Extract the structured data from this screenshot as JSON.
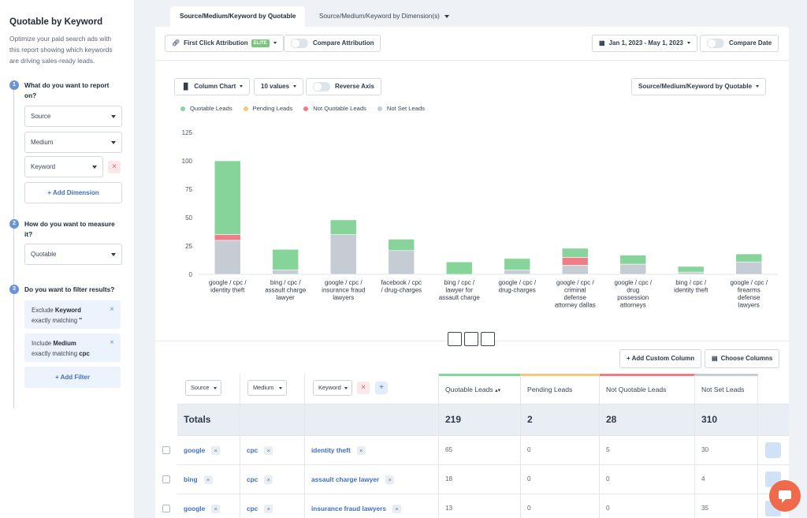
{
  "sidebar": {
    "title": "Quotable by Keyword",
    "description_lines": [
      "Optimize your paid search ads with",
      "this report showing which keywords",
      "are driving sales-ready leads."
    ],
    "steps": [
      {
        "num": "1",
        "question_lines": [
          "What do you want to report",
          "on?"
        ]
      },
      {
        "num": "2",
        "question_lines": [
          "How do you want to measure",
          "it?"
        ]
      },
      {
        "num": "3",
        "question_lines": [
          "Do you want to filter results?"
        ]
      }
    ],
    "dimensions": [
      "Source",
      "Medium",
      "Keyword"
    ],
    "add_dimension": "+ Add Dimension",
    "measure": "Quotable",
    "filters": [
      {
        "type": "Exclude",
        "field": "Keyword",
        "rule": "exactly matching",
        "value": "''"
      },
      {
        "type": "Include",
        "field": "Medium",
        "rule": "exactly matching",
        "value": "cpc"
      }
    ],
    "add_filter": "+ Add Filter"
  },
  "tabs": [
    "Source/Medium/Keyword by Quotable",
    "Source/Medium/Keyword by Dimension(s)"
  ],
  "toolbar": {
    "attribution": "First Click Attribution",
    "elite_badge": "ELITE",
    "compare_attribution": "Compare Attribution",
    "date_range": "Jan 1, 2023 - May 1, 2023",
    "compare_date": "Compare Date"
  },
  "chart_controls": {
    "chart_type": "Column Chart",
    "values_count": "10 values",
    "reverse_axis": "Reverse Axis",
    "group_by": "Source/Medium/Keyword by Quotable"
  },
  "colors": {
    "quotable": "#86d49a",
    "pending": "#f4c77b",
    "not_quotable": "#ef7d88",
    "not_set": "#c5ccd4",
    "accent": "#3f6fc4"
  },
  "chart_data": {
    "type": "bar",
    "stacked": true,
    "title": "",
    "xlabel": "",
    "ylabel": "",
    "ylim": [
      0,
      125
    ],
    "y_ticks": [
      0,
      25,
      50,
      75,
      100,
      125
    ],
    "categories": [
      [
        "google / cpc /",
        "identity theft"
      ],
      [
        "bing / cpc /",
        "assault charge",
        "lawyer"
      ],
      [
        "google / cpc /",
        "insurance fraud",
        "lawyers"
      ],
      [
        "facebook / cpc",
        "/ drug-charges"
      ],
      [
        "bing / cpc /",
        "lawyer for",
        "assault charge"
      ],
      [
        "google / cpc /",
        "drug-charges"
      ],
      [
        "google / cpc /",
        "criminal",
        "defense",
        "attorney dallas"
      ],
      [
        "google / cpc /",
        "drug",
        "possession",
        "attorneys"
      ],
      [
        "bing / cpc /",
        "identity theft"
      ],
      [
        "google / cpc /",
        "firearms",
        "defense",
        "lawyers"
      ]
    ],
    "series": [
      {
        "name": "Not Set Leads",
        "values": [
          30,
          4,
          35,
          21,
          0,
          4,
          8,
          9,
          2,
          11
        ]
      },
      {
        "name": "Not Quotable Leads",
        "values": [
          5,
          0,
          0,
          0,
          0,
          0,
          7,
          0,
          0,
          0
        ]
      },
      {
        "name": "Pending Leads",
        "values": [
          0,
          0,
          0,
          0,
          0,
          0,
          0,
          0,
          0,
          0
        ]
      },
      {
        "name": "Quotable Leads",
        "values": [
          65,
          18,
          13,
          10,
          11,
          10,
          8,
          8,
          5,
          7
        ]
      }
    ],
    "legend": [
      "Quotable Leads",
      "Pending Leads",
      "Not Quotable Leads",
      "Not Set Leads"
    ],
    "legend_position": "top-left"
  },
  "table": {
    "add_custom_column": "+ Add Custom Column",
    "choose_columns": "Choose Columns",
    "filters": [
      "Source",
      "Medium",
      "Keyword"
    ],
    "headers": [
      "Quotable Leads",
      "Pending Leads",
      "Not Quotable Leads",
      "Not Set Leads"
    ],
    "totals_label": "Totals",
    "totals": [
      "219",
      "2",
      "28",
      "310"
    ],
    "rows": [
      {
        "source": "google",
        "medium": "cpc",
        "keyword": "identity theft",
        "values": [
          "65",
          "0",
          "5",
          "30"
        ]
      },
      {
        "source": "bing",
        "medium": "cpc",
        "keyword": "assault charge lawyer",
        "values": [
          "18",
          "0",
          "0",
          "4"
        ]
      },
      {
        "source": "google",
        "medium": "cpc",
        "keyword": "insurance fraud lawyers",
        "values": [
          "13",
          "0",
          "0",
          "35"
        ]
      }
    ]
  }
}
